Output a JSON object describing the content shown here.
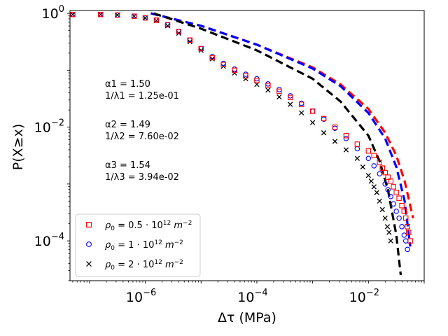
{
  "chart_data": {
    "type": "scatter",
    "xscale": "log",
    "yscale": "log",
    "xlim_exp": [
      -7.35,
      -1.0
    ],
    "ylim_exp": [
      -4.7,
      0.05
    ],
    "xlabel": "Δτ (MPa)",
    "ylabel": "P(X≥x)",
    "x_major_ticks": [
      {
        "exp": -6,
        "base": "10",
        "sup": "−6"
      },
      {
        "exp": -4,
        "base": "10",
        "sup": "−4"
      },
      {
        "exp": -2,
        "base": "10",
        "sup": "−2"
      }
    ],
    "y_major_ticks": [
      {
        "exp": 0,
        "base": "10",
        "sup": "0"
      },
      {
        "exp": -2,
        "base": "10",
        "sup": "−2"
      },
      {
        "exp": -4,
        "base": "10",
        "sup": "−4"
      }
    ],
    "annotations": [
      "α1 = 1.50",
      "1/λ1 = 1.25e-01",
      "α2 = 1.49",
      "1/λ2 = 7.60e-02",
      "α3 = 1.54",
      "1/λ3 = 3.94e-02"
    ],
    "legend": {
      "placement": "lower-left",
      "entries": [
        {
          "rho_pre": "ρ",
          "rho_sub": "0",
          "eq": " = 0.5 · 10",
          "exp": "12",
          "unit": " m",
          "unit_exp": "−2",
          "marker": "square",
          "color": "#ff0000"
        },
        {
          "rho_pre": "ρ",
          "rho_sub": "0",
          "eq": " = 1 · 10",
          "exp": "12",
          "unit": " m",
          "unit_exp": "−2",
          "marker": "circle",
          "color": "#0000ff"
        },
        {
          "rho_pre": "ρ",
          "rho_sub": "0",
          "eq": " = 2 · 10",
          "exp": "12",
          "unit": " m",
          "unit_exp": "−2",
          "marker": "x",
          "color": "#000000"
        }
      ]
    },
    "series": [
      {
        "name": "ρ0 = 0.5·10^12 m^-2",
        "color": "#ff0000",
        "marker": "square",
        "points": [
          [
            -7.3,
            -0.02
          ],
          [
            -6.8,
            -0.02
          ],
          [
            -6.5,
            -0.03
          ],
          [
            -6.2,
            -0.05
          ],
          [
            -6.0,
            -0.08
          ],
          [
            -5.8,
            -0.12
          ],
          [
            -5.6,
            -0.2
          ],
          [
            -5.4,
            -0.32
          ],
          [
            -5.2,
            -0.47
          ],
          [
            -5.0,
            -0.62
          ],
          [
            -4.8,
            -0.78
          ],
          [
            -4.6,
            -0.9
          ],
          [
            -4.4,
            -1.0
          ],
          [
            -4.2,
            -1.1
          ],
          [
            -4.0,
            -1.18
          ],
          [
            -3.8,
            -1.27
          ],
          [
            -3.6,
            -1.37
          ],
          [
            -3.4,
            -1.48
          ],
          [
            -3.2,
            -1.6
          ],
          [
            -3.0,
            -1.72
          ],
          [
            -2.8,
            -1.85
          ],
          [
            -2.6,
            -2.0
          ],
          [
            -2.4,
            -2.15
          ],
          [
            -2.2,
            -2.3
          ],
          [
            -2.0,
            -2.42
          ],
          [
            -1.9,
            -2.5
          ],
          [
            -1.8,
            -2.62
          ],
          [
            -1.75,
            -2.72
          ],
          [
            -1.7,
            -2.8
          ],
          [
            -1.65,
            -2.88
          ],
          [
            -1.6,
            -2.95
          ],
          [
            -1.55,
            -3.05
          ],
          [
            -1.5,
            -3.15
          ],
          [
            -1.45,
            -3.25
          ],
          [
            -1.4,
            -3.38
          ],
          [
            -1.36,
            -3.48
          ],
          [
            -1.33,
            -3.6
          ],
          [
            -1.3,
            -3.75
          ],
          [
            -1.28,
            -3.85
          ],
          [
            -1.25,
            -4.0
          ]
        ],
        "fit": [
          [
            -5.9,
            0.0
          ],
          [
            -5.0,
            -0.22
          ],
          [
            -4.0,
            -0.55
          ],
          [
            -3.0,
            -0.95
          ],
          [
            -2.5,
            -1.25
          ],
          [
            -2.0,
            -1.68
          ],
          [
            -1.7,
            -2.1
          ],
          [
            -1.5,
            -2.5
          ],
          [
            -1.35,
            -2.95
          ],
          [
            -1.2,
            -3.6
          ]
        ]
      },
      {
        "name": "ρ0 = 1·10^12 m^-2",
        "color": "#0000ff",
        "marker": "circle",
        "points": [
          [
            -7.3,
            -0.02
          ],
          [
            -6.8,
            -0.02
          ],
          [
            -6.5,
            -0.03
          ],
          [
            -6.2,
            -0.05
          ],
          [
            -6.0,
            -0.08
          ],
          [
            -5.8,
            -0.12
          ],
          [
            -5.6,
            -0.2
          ],
          [
            -5.4,
            -0.32
          ],
          [
            -5.2,
            -0.47
          ],
          [
            -5.0,
            -0.62
          ],
          [
            -4.8,
            -0.76
          ],
          [
            -4.6,
            -0.88
          ],
          [
            -4.4,
            -0.98
          ],
          [
            -4.2,
            -1.07
          ],
          [
            -4.0,
            -1.15
          ],
          [
            -3.8,
            -1.24
          ],
          [
            -3.6,
            -1.34
          ],
          [
            -3.4,
            -1.45
          ],
          [
            -3.2,
            -1.58
          ],
          [
            -3.0,
            -1.72
          ],
          [
            -2.8,
            -1.86
          ],
          [
            -2.6,
            -2.02
          ],
          [
            -2.4,
            -2.2
          ],
          [
            -2.2,
            -2.38
          ],
          [
            -2.0,
            -2.55
          ],
          [
            -1.9,
            -2.68
          ],
          [
            -1.8,
            -2.82
          ],
          [
            -1.7,
            -3.0
          ],
          [
            -1.65,
            -3.1
          ],
          [
            -1.6,
            -3.22
          ],
          [
            -1.55,
            -3.35
          ],
          [
            -1.5,
            -3.48
          ],
          [
            -1.45,
            -3.6
          ],
          [
            -1.4,
            -3.75
          ],
          [
            -1.36,
            -3.9
          ],
          [
            -1.33,
            -4.0
          ],
          [
            -1.3,
            -4.15
          ]
        ],
        "fit": [
          [
            -5.9,
            0.0
          ],
          [
            -5.0,
            -0.22
          ],
          [
            -4.0,
            -0.55
          ],
          [
            -3.0,
            -0.97
          ],
          [
            -2.5,
            -1.28
          ],
          [
            -2.0,
            -1.75
          ],
          [
            -1.7,
            -2.2
          ],
          [
            -1.5,
            -2.7
          ],
          [
            -1.35,
            -3.3
          ],
          [
            -1.25,
            -4.1
          ]
        ]
      },
      {
        "name": "ρ0 = 2·10^12 m^-2",
        "color": "#000000",
        "marker": "x",
        "points": [
          [
            -7.3,
            -0.02
          ],
          [
            -6.8,
            -0.02
          ],
          [
            -6.5,
            -0.03
          ],
          [
            -6.2,
            -0.05
          ],
          [
            -6.0,
            -0.08
          ],
          [
            -5.8,
            -0.13
          ],
          [
            -5.6,
            -0.22
          ],
          [
            -5.4,
            -0.35
          ],
          [
            -5.2,
            -0.5
          ],
          [
            -5.0,
            -0.65
          ],
          [
            -4.8,
            -0.8
          ],
          [
            -4.6,
            -0.93
          ],
          [
            -4.4,
            -1.05
          ],
          [
            -4.2,
            -1.15
          ],
          [
            -4.0,
            -1.25
          ],
          [
            -3.8,
            -1.35
          ],
          [
            -3.6,
            -1.47
          ],
          [
            -3.4,
            -1.6
          ],
          [
            -3.2,
            -1.75
          ],
          [
            -3.0,
            -1.92
          ],
          [
            -2.8,
            -2.1
          ],
          [
            -2.6,
            -2.25
          ],
          [
            -2.4,
            -2.4
          ],
          [
            -2.2,
            -2.55
          ],
          [
            -2.1,
            -2.7
          ],
          [
            -2.0,
            -2.85
          ],
          [
            -1.95,
            -2.95
          ],
          [
            -1.9,
            -3.05
          ],
          [
            -1.85,
            -3.15
          ],
          [
            -1.8,
            -3.3
          ],
          [
            -1.75,
            -3.45
          ],
          [
            -1.7,
            -3.6
          ],
          [
            -1.66,
            -3.75
          ],
          [
            -1.63,
            -3.85
          ],
          [
            -1.6,
            -4.0
          ]
        ],
        "fit": [
          [
            -5.85,
            0.0
          ],
          [
            -5.0,
            -0.27
          ],
          [
            -4.0,
            -0.65
          ],
          [
            -3.0,
            -1.15
          ],
          [
            -2.5,
            -1.55
          ],
          [
            -2.0,
            -2.15
          ],
          [
            -1.8,
            -2.6
          ],
          [
            -1.65,
            -3.1
          ],
          [
            -1.5,
            -3.9
          ],
          [
            -1.42,
            -4.6
          ]
        ]
      }
    ]
  }
}
